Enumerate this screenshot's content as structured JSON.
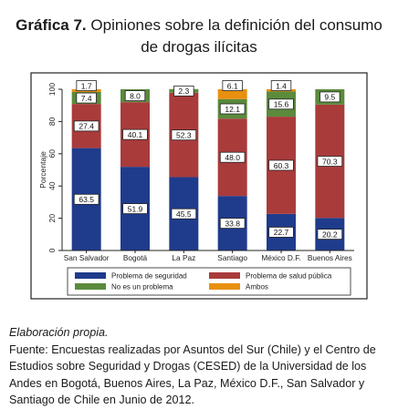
{
  "title": {
    "number": "Gráfica 7.",
    "line1": "Opiniones sobre la definición del consumo",
    "line2": "de drogas ilícitas"
  },
  "chart_data": {
    "type": "bar",
    "stacked": true,
    "categories": [
      "San Salvador",
      "Bogotá",
      "La Paz",
      "Santiago",
      "México D.F.",
      "Buenos Aires"
    ],
    "series": [
      {
        "name": "Problema de seguridad",
        "color": "#1f3b8c",
        "values": [
          63.5,
          51.9,
          45.5,
          33.8,
          22.7,
          20.2
        ]
      },
      {
        "name": "Problema de salud pública",
        "color": "#a93b3b",
        "values": [
          27.4,
          40.1,
          52.3,
          48.0,
          60.3,
          70.3
        ]
      },
      {
        "name": "No es un problema",
        "color": "#5b8a3c",
        "values": [
          7.4,
          8.0,
          2.3,
          12.1,
          15.6,
          9.5
        ]
      },
      {
        "name": "Ambos",
        "color": "#e8900f",
        "values": [
          1.7,
          0.0,
          0.0,
          6.1,
          1.4,
          0.0
        ]
      }
    ],
    "data_labels": [
      [
        "63.5",
        "27.4",
        "7.4",
        "1.7"
      ],
      [
        "51.9",
        "40.1",
        "8.0",
        ""
      ],
      [
        "45.5",
        "52.3",
        "2.3",
        ""
      ],
      [
        "33.8",
        "48.0",
        "12.1",
        "6.1"
      ],
      [
        "22.7",
        "60.3",
        "15.6",
        "1.4"
      ],
      [
        "20.2",
        "70.3",
        "9.5",
        ""
      ]
    ],
    "ylabel": "Porcentaje",
    "ylim": [
      0,
      100
    ],
    "yticks": [
      "0",
      "20",
      "40",
      "60",
      "80",
      "100"
    ],
    "legend_position": "bottom"
  },
  "footer": {
    "credit": "Elaboración propia.",
    "source": "Fuente: Encuestas realizadas por Asuntos del Sur (Chile) y el Centro de Estudios sobre Seguridad y Drogas (CESED) de la Universidad de los Andes en Bogotá, Buenos Aires, La Paz, México D.F., San Salvador y Santiago de Chile en Junio de 2012."
  }
}
